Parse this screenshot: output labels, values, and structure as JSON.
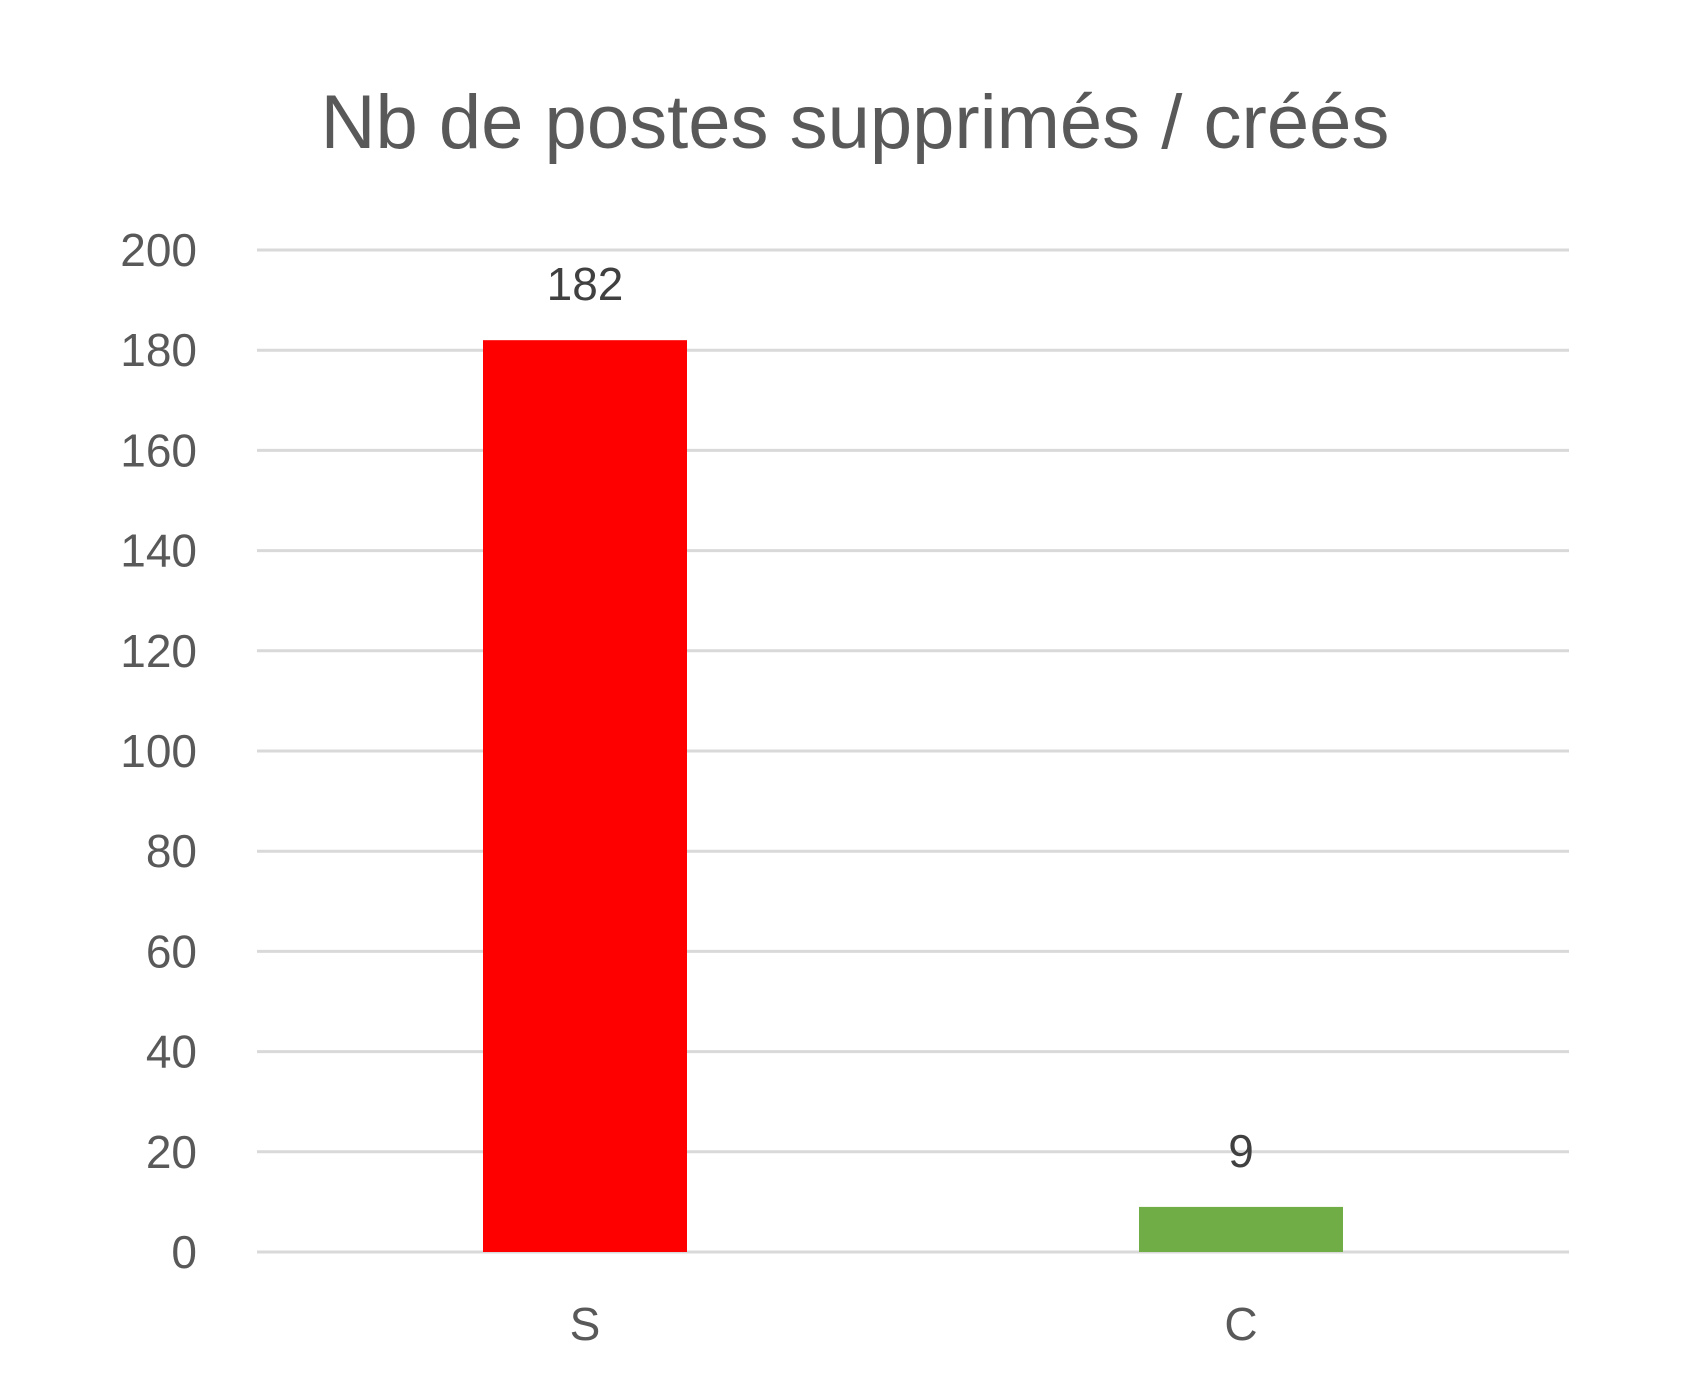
{
  "chart_data": {
    "type": "bar",
    "title": "Nb de postes supprimés / créés",
    "categories": [
      "S",
      "C"
    ],
    "values": [
      182,
      9
    ],
    "data_labels": [
      "182",
      "9"
    ],
    "colors": [
      "#FF0000",
      "#70AD47"
    ],
    "ylim": [
      0,
      200
    ],
    "yticks": [
      0,
      20,
      40,
      60,
      80,
      100,
      120,
      140,
      160,
      180,
      200
    ],
    "grid": true,
    "gridline_color": "#D9D9D9",
    "xlabel": "",
    "ylabel": ""
  }
}
